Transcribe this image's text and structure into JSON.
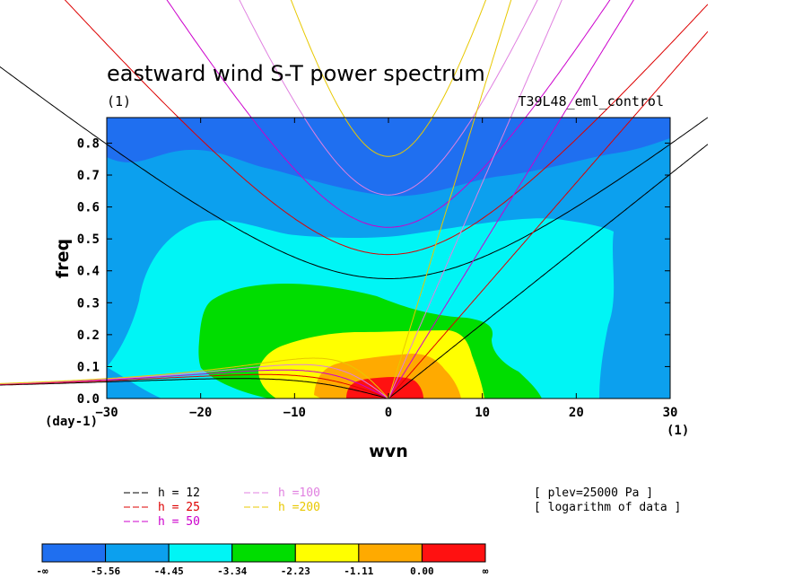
{
  "chart_data": {
    "type": "contour",
    "title": "eastward wind S-T power spectrum",
    "title_units": "(1)",
    "run_label": "T39L48_eml_control",
    "xlabel": "wvn",
    "x_units": "(1)",
    "ylabel": "freq",
    "y_units": "(day-1)",
    "xlim": [
      -30,
      30
    ],
    "ylim": [
      0,
      0.88
    ],
    "x_ticks": [
      -30,
      -20,
      -10,
      0,
      10,
      20,
      30
    ],
    "y_ticks": [
      0.0,
      0.1,
      0.2,
      0.3,
      0.4,
      0.5,
      0.6,
      0.7,
      0.8
    ],
    "x_tick_labels": [
      "−30",
      "−20",
      "−10",
      "0",
      "10",
      "20",
      "30"
    ],
    "y_tick_labels": [
      "0.0",
      "0.1",
      "0.2",
      "0.3",
      "0.4",
      "0.5",
      "0.6",
      "0.7",
      "0.8"
    ],
    "contour_levels": [
      "-∞",
      "-5.56",
      "-4.45",
      "-3.34",
      "-2.23",
      "-1.11",
      "0.00",
      "∞"
    ],
    "contour_colors": [
      "#1f6ff0",
      "#0ca0ee",
      "#00f5f5",
      "#00dd00",
      "#ffff00",
      "#ffaa00",
      "#ff1111"
    ],
    "dispersion_curves": [
      {
        "name": "h = 12",
        "h": 12,
        "color": "#000000"
      },
      {
        "name": "h = 25",
        "h": 25,
        "color": "#dd0000"
      },
      {
        "name": "h = 50",
        "h": 50,
        "color": "#cc00cc"
      },
      {
        "name": "h =100",
        "h": 100,
        "color": "#e080e0"
      },
      {
        "name": "h =200",
        "h": 200,
        "color": "#e8c800"
      }
    ],
    "annotations": [
      "[ plev=25000 Pa ]",
      "[ logarithm of data ]"
    ]
  }
}
